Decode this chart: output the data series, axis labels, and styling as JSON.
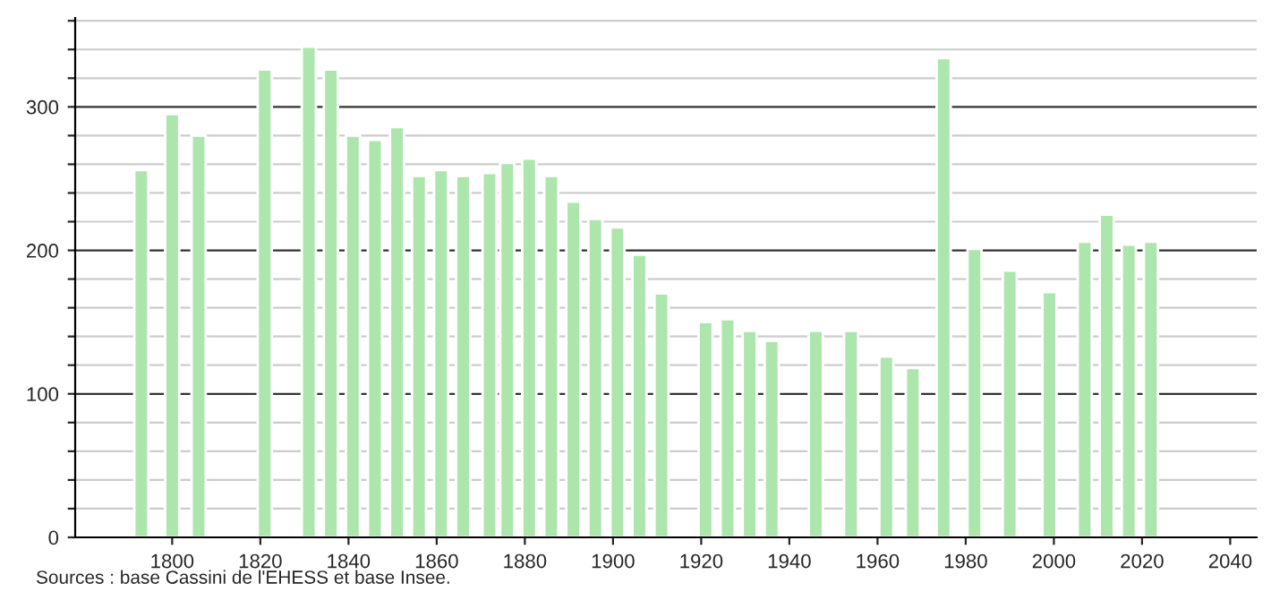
{
  "chart_data": {
    "type": "bar",
    "color": "#ade6ad",
    "x": [
      1793,
      1800,
      1806,
      1821,
      1831,
      1836,
      1841,
      1846,
      1851,
      1856,
      1861,
      1866,
      1872,
      1876,
      1881,
      1886,
      1891,
      1896,
      1901,
      1906,
      1911,
      1921,
      1926,
      1931,
      1936,
      1946,
      1954,
      1962,
      1968,
      1975,
      1982,
      1990,
      1999,
      2007,
      2012,
      2017,
      2022
    ],
    "values": [
      256,
      295,
      280,
      326,
      342,
      326,
      280,
      277,
      286,
      252,
      256,
      252,
      254,
      261,
      264,
      252,
      234,
      222,
      216,
      197,
      170,
      150,
      152,
      144,
      137,
      144,
      144,
      126,
      118,
      334,
      201,
      186,
      171,
      206,
      225,
      204,
      206
    ],
    "xlim": [
      1778,
      2046
    ],
    "xticks": [
      1800,
      1820,
      1840,
      1860,
      1880,
      1900,
      1920,
      1940,
      1960,
      1980,
      2000,
      2020,
      2040
    ],
    "ylim": [
      0,
      362
    ],
    "yticks": [
      0,
      {
        "value": 20,
        "label": null
      },
      {
        "value": 40,
        "label": null
      },
      {
        "value": 60,
        "label": null
      },
      {
        "value": 80,
        "label": null
      },
      100,
      {
        "value": 120,
        "label": null
      },
      {
        "value": 140,
        "label": null
      },
      {
        "value": 160,
        "label": null
      },
      {
        "value": 180,
        "label": null
      },
      200,
      {
        "value": 220,
        "label": null
      },
      {
        "value": 240,
        "label": null
      },
      {
        "value": 260,
        "label": null
      },
      {
        "value": 280,
        "label": null
      },
      300,
      {
        "value": 320,
        "label": null
      },
      {
        "value": 340,
        "label": null
      },
      {
        "value": 360,
        "label": null
      }
    ],
    "grid": "y",
    "annotations": [
      "Sources : base Cassini de l'EHESS et base Insee."
    ]
  }
}
